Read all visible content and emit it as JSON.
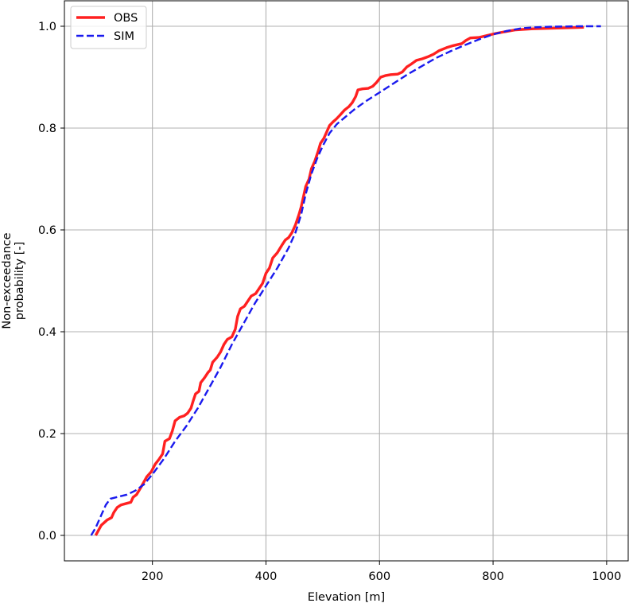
{
  "chart_data": {
    "type": "line",
    "title": "",
    "xlabel": "Elevation [m]",
    "ylabel_lines": [
      "Non-exceedance",
      "probability [-]"
    ],
    "xlim": [
      45,
      1038
    ],
    "ylim": [
      -0.05,
      1.05
    ],
    "x_ticks": [
      200,
      400,
      600,
      800,
      1000
    ],
    "y_ticks": [
      0.0,
      0.2,
      0.4,
      0.6,
      0.8,
      1.0
    ],
    "x_tick_labels": [
      "200",
      "400",
      "600",
      "800",
      "1000"
    ],
    "y_tick_labels": [
      "0.0",
      "0.2",
      "0.4",
      "0.6",
      "0.8",
      "1.0"
    ],
    "grid": true,
    "legend_position": "top-left",
    "series": [
      {
        "name": "OBS",
        "color": "#ff2020",
        "style": "solid",
        "points": [
          [
            100,
            0.0
          ],
          [
            110,
            0.02
          ],
          [
            120,
            0.03
          ],
          [
            128,
            0.035
          ],
          [
            132,
            0.045
          ],
          [
            138,
            0.055
          ],
          [
            145,
            0.06
          ],
          [
            155,
            0.063
          ],
          [
            162,
            0.065
          ],
          [
            166,
            0.075
          ],
          [
            172,
            0.08
          ],
          [
            180,
            0.095
          ],
          [
            190,
            0.115
          ],
          [
            198,
            0.125
          ],
          [
            205,
            0.14
          ],
          [
            212,
            0.15
          ],
          [
            218,
            0.16
          ],
          [
            222,
            0.185
          ],
          [
            230,
            0.19
          ],
          [
            235,
            0.205
          ],
          [
            240,
            0.225
          ],
          [
            248,
            0.232
          ],
          [
            256,
            0.235
          ],
          [
            262,
            0.24
          ],
          [
            268,
            0.25
          ],
          [
            272,
            0.265
          ],
          [
            276,
            0.278
          ],
          [
            282,
            0.283
          ],
          [
            285,
            0.3
          ],
          [
            292,
            0.31
          ],
          [
            298,
            0.32
          ],
          [
            302,
            0.325
          ],
          [
            306,
            0.34
          ],
          [
            314,
            0.35
          ],
          [
            320,
            0.36
          ],
          [
            326,
            0.375
          ],
          [
            332,
            0.385
          ],
          [
            340,
            0.39
          ],
          [
            346,
            0.405
          ],
          [
            350,
            0.43
          ],
          [
            355,
            0.445
          ],
          [
            362,
            0.45
          ],
          [
            368,
            0.46
          ],
          [
            374,
            0.47
          ],
          [
            382,
            0.475
          ],
          [
            388,
            0.485
          ],
          [
            394,
            0.495
          ],
          [
            400,
            0.515
          ],
          [
            406,
            0.525
          ],
          [
            412,
            0.545
          ],
          [
            420,
            0.555
          ],
          [
            428,
            0.57
          ],
          [
            434,
            0.58
          ],
          [
            440,
            0.585
          ],
          [
            446,
            0.595
          ],
          [
            452,
            0.61
          ],
          [
            458,
            0.63
          ],
          [
            462,
            0.645
          ],
          [
            466,
            0.665
          ],
          [
            470,
            0.685
          ],
          [
            476,
            0.7
          ],
          [
            480,
            0.72
          ],
          [
            486,
            0.735
          ],
          [
            492,
            0.755
          ],
          [
            496,
            0.77
          ],
          [
            502,
            0.78
          ],
          [
            508,
            0.795
          ],
          [
            512,
            0.805
          ],
          [
            518,
            0.812
          ],
          [
            524,
            0.818
          ],
          [
            530,
            0.825
          ],
          [
            538,
            0.835
          ],
          [
            546,
            0.842
          ],
          [
            552,
            0.85
          ],
          [
            558,
            0.862
          ],
          [
            562,
            0.875
          ],
          [
            570,
            0.877
          ],
          [
            580,
            0.878
          ],
          [
            588,
            0.882
          ],
          [
            595,
            0.89
          ],
          [
            602,
            0.9
          ],
          [
            610,
            0.903
          ],
          [
            620,
            0.905
          ],
          [
            632,
            0.906
          ],
          [
            640,
            0.91
          ],
          [
            648,
            0.92
          ],
          [
            655,
            0.925
          ],
          [
            665,
            0.933
          ],
          [
            675,
            0.936
          ],
          [
            685,
            0.94
          ],
          [
            695,
            0.945
          ],
          [
            705,
            0.952
          ],
          [
            718,
            0.958
          ],
          [
            730,
            0.962
          ],
          [
            745,
            0.966
          ],
          [
            752,
            0.972
          ],
          [
            760,
            0.977
          ],
          [
            775,
            0.978
          ],
          [
            790,
            0.982
          ],
          [
            805,
            0.986
          ],
          [
            820,
            0.989
          ],
          [
            840,
            0.993
          ],
          [
            870,
            0.995
          ],
          [
            900,
            0.996
          ],
          [
            930,
            0.997
          ],
          [
            960,
            0.998
          ]
        ]
      },
      {
        "name": "SIM",
        "color": "#1a1aee",
        "style": "dashed",
        "points": [
          [
            92,
            0.0
          ],
          [
            100,
            0.015
          ],
          [
            110,
            0.04
          ],
          [
            118,
            0.06
          ],
          [
            126,
            0.072
          ],
          [
            140,
            0.076
          ],
          [
            155,
            0.08
          ],
          [
            170,
            0.088
          ],
          [
            185,
            0.1
          ],
          [
            200,
            0.12
          ],
          [
            220,
            0.15
          ],
          [
            240,
            0.185
          ],
          [
            260,
            0.215
          ],
          [
            280,
            0.25
          ],
          [
            300,
            0.29
          ],
          [
            320,
            0.33
          ],
          [
            340,
            0.375
          ],
          [
            360,
            0.415
          ],
          [
            380,
            0.455
          ],
          [
            400,
            0.49
          ],
          [
            420,
            0.525
          ],
          [
            440,
            0.565
          ],
          [
            452,
            0.595
          ],
          [
            462,
            0.63
          ],
          [
            470,
            0.67
          ],
          [
            480,
            0.71
          ],
          [
            490,
            0.74
          ],
          [
            500,
            0.765
          ],
          [
            512,
            0.79
          ],
          [
            525,
            0.808
          ],
          [
            540,
            0.822
          ],
          [
            555,
            0.836
          ],
          [
            575,
            0.852
          ],
          [
            600,
            0.87
          ],
          [
            625,
            0.888
          ],
          [
            650,
            0.906
          ],
          [
            675,
            0.922
          ],
          [
            700,
            0.938
          ],
          [
            725,
            0.951
          ],
          [
            750,
            0.963
          ],
          [
            775,
            0.974
          ],
          [
            800,
            0.984
          ],
          [
            825,
            0.991
          ],
          [
            850,
            0.996
          ],
          [
            875,
            0.998
          ],
          [
            900,
            0.999
          ],
          [
            950,
            1.0
          ],
          [
            990,
            1.0
          ]
        ]
      }
    ]
  }
}
